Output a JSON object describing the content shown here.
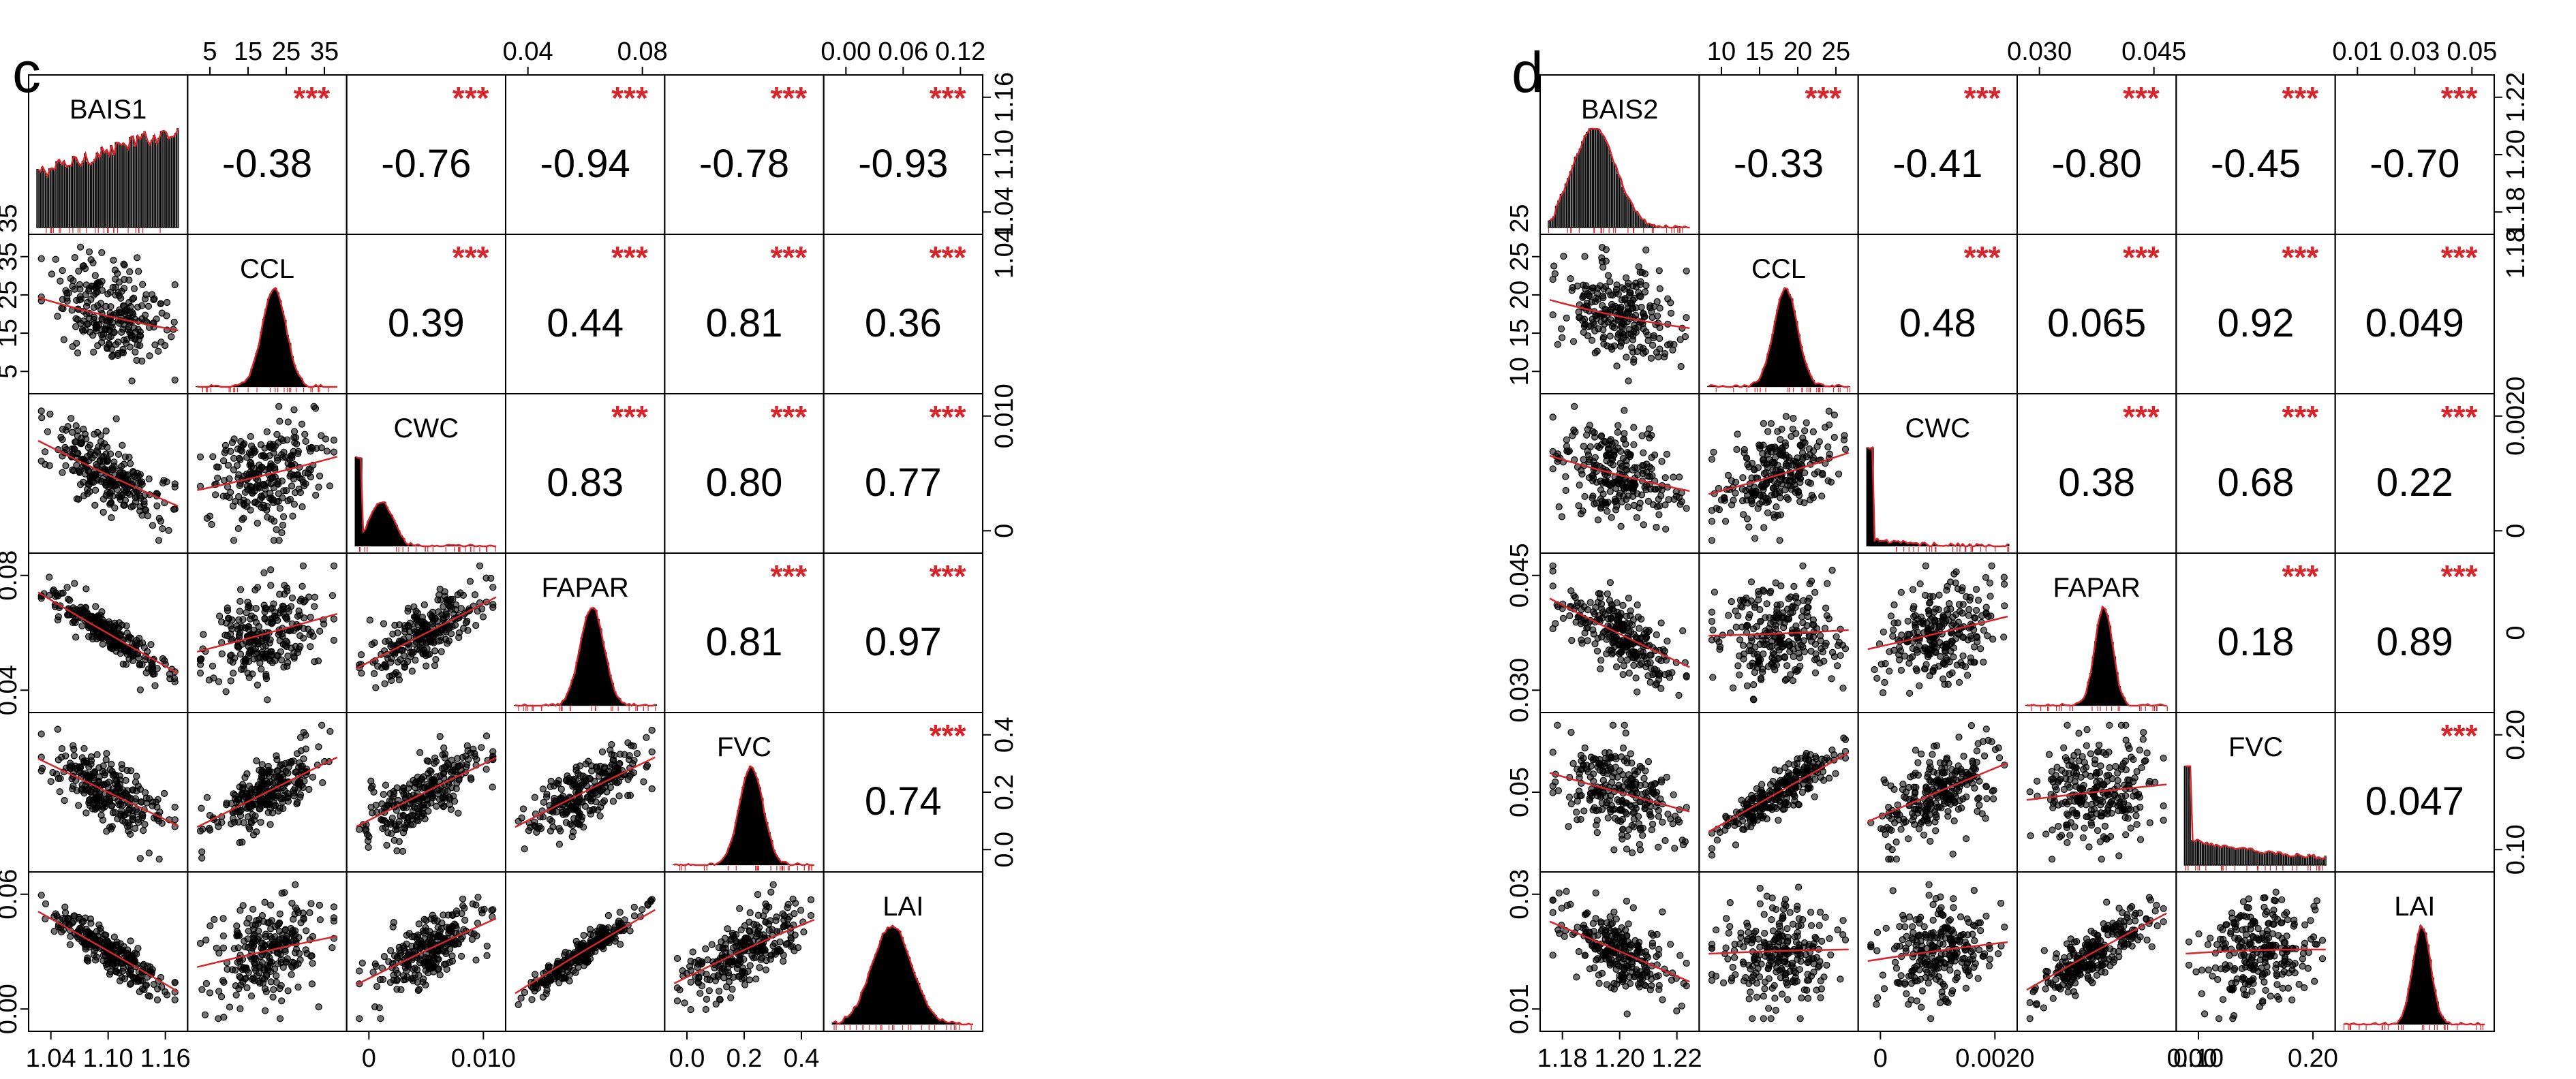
{
  "chart_data": [
    {
      "type": "scatter",
      "panel_label": "c",
      "variables": [
        "BAIS1",
        "CCL",
        "CWC",
        "FAPAR",
        "FVC",
        "LAI"
      ],
      "significance_color": "#d7262b",
      "loess_color": "#d7262b",
      "correlations": [
        {
          "row": 0,
          "col": 1,
          "r": "-0.38",
          "stars": "***"
        },
        {
          "row": 0,
          "col": 2,
          "r": "-0.76",
          "stars": "***"
        },
        {
          "row": 0,
          "col": 3,
          "r": "-0.94",
          "stars": "***"
        },
        {
          "row": 0,
          "col": 4,
          "r": "-0.78",
          "stars": "***"
        },
        {
          "row": 0,
          "col": 5,
          "r": "-0.93",
          "stars": "***"
        },
        {
          "row": 1,
          "col": 2,
          "r": "0.39",
          "stars": "***"
        },
        {
          "row": 1,
          "col": 3,
          "r": "0.44",
          "stars": "***"
        },
        {
          "row": 1,
          "col": 4,
          "r": "0.81",
          "stars": "***"
        },
        {
          "row": 1,
          "col": 5,
          "r": "0.36",
          "stars": "***"
        },
        {
          "row": 2,
          "col": 3,
          "r": "0.83",
          "stars": "***"
        },
        {
          "row": 2,
          "col": 4,
          "r": "0.80",
          "stars": "***"
        },
        {
          "row": 2,
          "col": 5,
          "r": "0.77",
          "stars": "***"
        },
        {
          "row": 3,
          "col": 4,
          "r": "0.81",
          "stars": "***"
        },
        {
          "row": 3,
          "col": 5,
          "r": "0.97",
          "stars": "***"
        },
        {
          "row": 4,
          "col": 5,
          "r": "0.74",
          "stars": "***"
        }
      ],
      "top_axes": [
        {
          "col": 1,
          "ticks": [
            "5",
            "15",
            "25",
            "35"
          ]
        },
        {
          "col": 3,
          "ticks": [
            "0.04",
            "0.08"
          ]
        },
        {
          "col": 5,
          "ticks": [
            "0.00",
            "0.06",
            "0.12"
          ]
        }
      ],
      "right_axes": [
        {
          "row": 0,
          "ticks": [
            "1.04",
            "1.10",
            "1.16"
          ]
        },
        {
          "row": 2,
          "ticks": [
            "0",
            "0.010"
          ]
        },
        {
          "row": 4,
          "ticks": [
            "0.0",
            "0.2",
            "0.4"
          ]
        }
      ],
      "left_axes": [
        {
          "row": 1,
          "ticks": [
            "5",
            "15",
            "25",
            "35"
          ]
        },
        {
          "row": 3,
          "ticks": [
            "0.04",
            "0.08"
          ]
        },
        {
          "row": 5,
          "ticks": [
            "0.00",
            "0.06"
          ]
        }
      ],
      "bottom_axes": [
        {
          "col": 0,
          "ticks": [
            "1.04",
            "1.10",
            "1.16"
          ]
        },
        {
          "col": 2,
          "ticks": [
            "0",
            "0.010"
          ]
        },
        {
          "col": 4,
          "ticks": [
            "0.0",
            "0.2",
            "0.4"
          ]
        }
      ],
      "left_extra_label": {
        "row": 0,
        "text": "35"
      },
      "right_extra_label": {
        "row": 1,
        "text": "1.04"
      },
      "histogram_shapes": [
        "uniform",
        "normal",
        "skew-right",
        "normal",
        "normal",
        "normal-wide"
      ],
      "scatter_slopes": [
        {
          "row": 1,
          "col": 0,
          "r": -0.38
        },
        {
          "row": 2,
          "col": 0,
          "r": -0.76
        },
        {
          "row": 2,
          "col": 1,
          "r": 0.39
        },
        {
          "row": 3,
          "col": 0,
          "r": -0.94
        },
        {
          "row": 3,
          "col": 1,
          "r": 0.44
        },
        {
          "row": 3,
          "col": 2,
          "r": 0.83
        },
        {
          "row": 4,
          "col": 0,
          "r": -0.78
        },
        {
          "row": 4,
          "col": 1,
          "r": 0.81
        },
        {
          "row": 4,
          "col": 2,
          "r": 0.8
        },
        {
          "row": 4,
          "col": 3,
          "r": 0.81
        },
        {
          "row": 5,
          "col": 0,
          "r": -0.93
        },
        {
          "row": 5,
          "col": 1,
          "r": 0.36
        },
        {
          "row": 5,
          "col": 2,
          "r": 0.77
        },
        {
          "row": 5,
          "col": 3,
          "r": 0.97
        },
        {
          "row": 5,
          "col": 4,
          "r": 0.74
        }
      ]
    },
    {
      "type": "scatter",
      "panel_label": "d",
      "variables": [
        "BAIS2",
        "CCL",
        "CWC",
        "FAPAR",
        "FVC",
        "LAI"
      ],
      "significance_color": "#d7262b",
      "loess_color": "#d7262b",
      "correlations": [
        {
          "row": 0,
          "col": 1,
          "r": "-0.33",
          "stars": "***"
        },
        {
          "row": 0,
          "col": 2,
          "r": "-0.41",
          "stars": "***"
        },
        {
          "row": 0,
          "col": 3,
          "r": "-0.80",
          "stars": "***"
        },
        {
          "row": 0,
          "col": 4,
          "r": "-0.45",
          "stars": "***"
        },
        {
          "row": 0,
          "col": 5,
          "r": "-0.70",
          "stars": "***"
        },
        {
          "row": 1,
          "col": 2,
          "r": "0.48",
          "stars": "***"
        },
        {
          "row": 1,
          "col": 3,
          "r": "0.065",
          "stars": "***"
        },
        {
          "row": 1,
          "col": 4,
          "r": "0.92",
          "stars": "***"
        },
        {
          "row": 1,
          "col": 5,
          "r": "0.049",
          "stars": "***"
        },
        {
          "row": 2,
          "col": 3,
          "r": "0.38",
          "stars": "***"
        },
        {
          "row": 2,
          "col": 4,
          "r": "0.68",
          "stars": "***"
        },
        {
          "row": 2,
          "col": 5,
          "r": "0.22",
          "stars": "***"
        },
        {
          "row": 3,
          "col": 4,
          "r": "0.18",
          "stars": "***"
        },
        {
          "row": 3,
          "col": 5,
          "r": "0.89",
          "stars": "***"
        },
        {
          "row": 4,
          "col": 5,
          "r": "0.047",
          "stars": "***"
        }
      ],
      "top_axes": [
        {
          "col": 1,
          "ticks": [
            "10",
            "15",
            "20",
            "25"
          ]
        },
        {
          "col": 3,
          "ticks": [
            "0.030",
            "0.045"
          ]
        },
        {
          "col": 5,
          "ticks": [
            "0.01",
            "0.03",
            "0.05"
          ]
        }
      ],
      "right_axes": [
        {
          "row": 0,
          "ticks": [
            "1.18",
            "1.20",
            "1.22"
          ]
        },
        {
          "row": 2,
          "ticks": [
            "0",
            "0.0020"
          ]
        },
        {
          "row": 4,
          "ticks": [
            "0.10",
            "0.20"
          ]
        }
      ],
      "left_axes": [
        {
          "row": 1,
          "ticks": [
            "10",
            "15",
            "20",
            "25"
          ]
        },
        {
          "row": 3,
          "ticks": [
            "0.030",
            "0.045"
          ]
        },
        {
          "row": 4,
          "ticks": [
            "0.05"
          ]
        },
        {
          "row": 5,
          "ticks": [
            "0.01",
            "0.03"
          ]
        }
      ],
      "bottom_axes": [
        {
          "col": 0,
          "ticks": [
            "1.18",
            "1.20",
            "1.22"
          ]
        },
        {
          "col": 2,
          "ticks": [
            "0",
            "0.0020"
          ]
        },
        {
          "col": 4,
          "ticks": [
            "0.10",
            "0.20"
          ]
        }
      ],
      "left_extra_label": {
        "row": 0,
        "text": "25"
      },
      "right_extra_label": {
        "row": 1,
        "text": "1.18"
      },
      "right_row3_label": "0",
      "bottom_col4_extra": "0.00",
      "histogram_shapes": [
        "skew-right-bars",
        "normal",
        "spike-left",
        "normal-narrow",
        "spike-left-bars",
        "normal-narrow"
      ],
      "scatter_slopes": [
        {
          "row": 1,
          "col": 0,
          "r": -0.33
        },
        {
          "row": 2,
          "col": 0,
          "r": -0.41
        },
        {
          "row": 2,
          "col": 1,
          "r": 0.48
        },
        {
          "row": 3,
          "col": 0,
          "r": -0.8
        },
        {
          "row": 3,
          "col": 1,
          "r": 0.065
        },
        {
          "row": 3,
          "col": 2,
          "r": 0.38
        },
        {
          "row": 4,
          "col": 0,
          "r": -0.45
        },
        {
          "row": 4,
          "col": 1,
          "r": 0.92
        },
        {
          "row": 4,
          "col": 2,
          "r": 0.68
        },
        {
          "row": 4,
          "col": 3,
          "r": 0.18
        },
        {
          "row": 5,
          "col": 0,
          "r": -0.7
        },
        {
          "row": 5,
          "col": 1,
          "r": 0.049
        },
        {
          "row": 5,
          "col": 2,
          "r": 0.22
        },
        {
          "row": 5,
          "col": 3,
          "r": 0.89
        },
        {
          "row": 5,
          "col": 4,
          "r": 0.047
        }
      ]
    }
  ]
}
